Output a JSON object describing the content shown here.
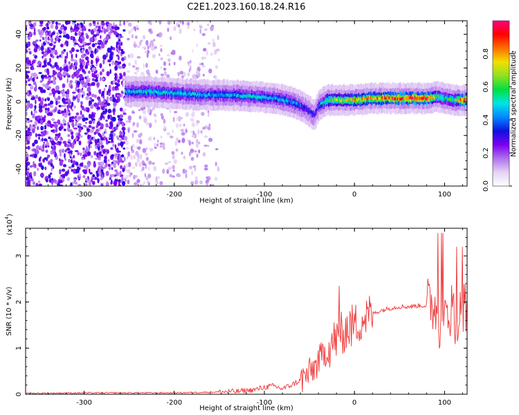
{
  "figure_title": "C2E1.2023.160.18.24.R16",
  "chart_data": [
    {
      "type": "heatmap",
      "title": "",
      "xlabel": "Height of straight line (km)",
      "ylabel": "Frequency (Hz)",
      "xlim": [
        -365,
        125
      ],
      "ylim": [
        -50,
        48
      ],
      "x_ticks": [
        -300,
        -200,
        -100,
        0,
        100
      ],
      "y_ticks": [
        -40,
        -20,
        0,
        20,
        40
      ],
      "colorbar": {
        "label": "Normalized spectral amplitude",
        "range": [
          0,
          1
        ],
        "ticks": [
          "0.0",
          "0.2",
          "0.4",
          "0.6",
          "0.8"
        ],
        "colormap": [
          "#ffffff",
          "#e6d2f5",
          "#b070ee",
          "#7a00f0",
          "#1010e0",
          "#0088ff",
          "#00e5e5",
          "#00e040",
          "#90e020",
          "#f0e000",
          "#ff7000",
          "#ff0000",
          "#ff0080"
        ]
      },
      "ridge": {
        "x": [
          -255,
          -230,
          -200,
          -170,
          -140,
          -110,
          -90,
          -70,
          -55,
          -45,
          -40,
          -30,
          -10,
          0,
          20,
          50,
          80,
          90,
          100,
          110,
          120
        ],
        "frequency": [
          6,
          6,
          5,
          4,
          4,
          3,
          2,
          0,
          -4,
          -8,
          -2,
          1,
          1,
          1,
          2,
          2,
          2,
          3,
          2,
          1,
          1
        ],
        "peak_amplitude": [
          0.45,
          0.5,
          0.5,
          0.45,
          0.45,
          0.5,
          0.45,
          0.45,
          0.35,
          0.3,
          0.4,
          0.6,
          0.7,
          0.75,
          0.8,
          0.9,
          0.95,
          0.6,
          0.55,
          0.55,
          0.9
        ]
      },
      "noise_region": {
        "x_range": [
          -365,
          -150
        ],
        "dense_until": -255
      }
    },
    {
      "type": "line",
      "title": "",
      "xlabel": "Height of straight line (km)",
      "ylabel": "SNR (10 * v/v)",
      "y_multiplier": "(x10",
      "y_multiplier_exp": "4",
      "xlim": [
        -365,
        125
      ],
      "ylim": [
        0,
        3.6
      ],
      "x_ticks": [
        -300,
        -200,
        -100,
        0,
        100
      ],
      "y_ticks": [
        0,
        1,
        2,
        3
      ],
      "color": "#ee3333",
      "series": [
        {
          "x": [
            -365,
            -300,
            -200,
            -150,
            -130,
            -110,
            -100,
            -90,
            -80,
            -70,
            -60,
            -50,
            -40,
            -30,
            -20,
            -10,
            0,
            10,
            20,
            30,
            40,
            50,
            60,
            70,
            80,
            90,
            95,
            100,
            105,
            110,
            115,
            120,
            125
          ],
          "values": [
            0.02,
            0.03,
            0.03,
            0.05,
            0.06,
            0.1,
            0.15,
            0.18,
            0.12,
            0.2,
            0.3,
            0.45,
            0.7,
            1.0,
            1.2,
            1.4,
            1.5,
            1.65,
            1.75,
            1.82,
            1.87,
            1.9,
            1.9,
            1.92,
            1.92,
            1.95,
            1.5,
            1.7,
            1.9,
            1.8,
            1.6,
            1.85,
            1.8
          ]
        }
      ]
    }
  ]
}
